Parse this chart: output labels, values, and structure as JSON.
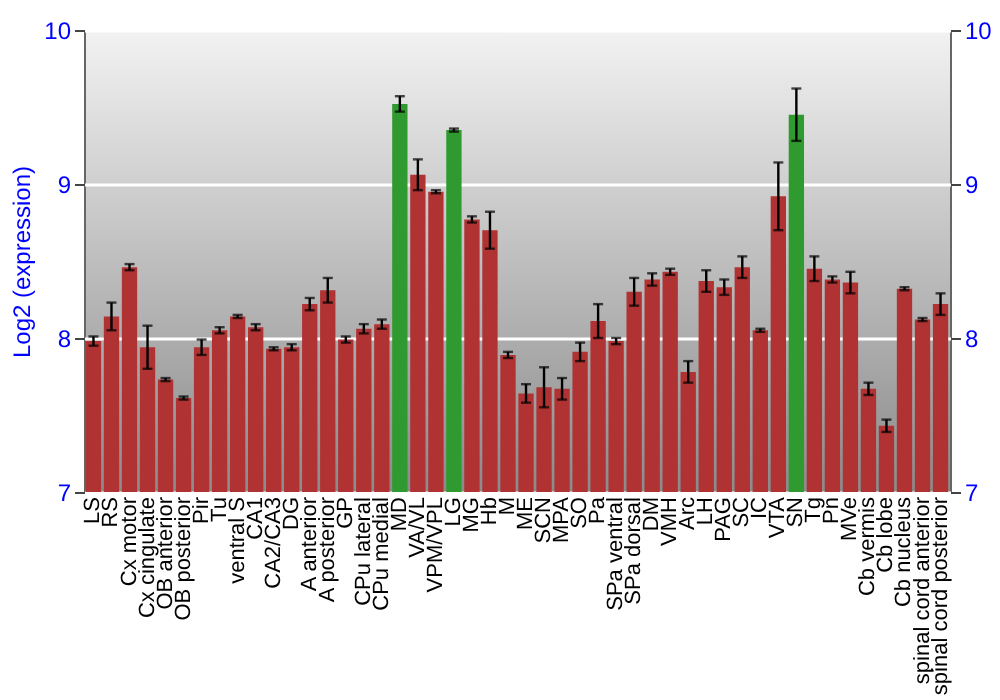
{
  "chart_data": {
    "type": "bar",
    "ylabel": "Log2 (expression)",
    "categories": [
      "LS",
      "RS",
      "Cx motor",
      "Cx cingulate",
      "OB anterior",
      "OB posterior",
      "Pir",
      "Tu",
      "ventral S",
      "CA1",
      "CA2/CA3",
      "DG",
      "A anterior",
      "A posterior",
      "GP",
      "CPu lateral",
      "CPu medial",
      "MD",
      "VA/VL",
      "VPM/VPL",
      "LG",
      "MG",
      "Hb",
      "M",
      "ME",
      "SCN",
      "MPA",
      "SO",
      "Pa",
      "SPa ventral",
      "SPa dorsal",
      "DM",
      "VMH",
      "Arc",
      "LH",
      "PAG",
      "SC",
      "IC",
      "VTA",
      "SN",
      "Tg",
      "Pn",
      "MVe",
      "Cb vermis",
      "Cb lobe",
      "Cb nucleus",
      "spinal cord anterior",
      "spinal cord posterior"
    ],
    "values": [
      7.98,
      8.14,
      8.46,
      7.94,
      7.73,
      7.61,
      7.94,
      8.05,
      8.14,
      8.07,
      7.93,
      7.94,
      8.22,
      8.31,
      7.99,
      8.06,
      8.09,
      9.52,
      9.06,
      8.95,
      9.35,
      8.77,
      8.7,
      7.89,
      7.64,
      7.68,
      7.67,
      7.91,
      8.11,
      7.98,
      8.3,
      8.38,
      8.43,
      7.78,
      8.37,
      8.33,
      8.46,
      8.05,
      8.92,
      9.45,
      8.45,
      8.38,
      8.36,
      7.67,
      7.43,
      8.32,
      8.12,
      8.22
    ],
    "errors": [
      0.03,
      0.09,
      0.02,
      0.14,
      0.01,
      0.01,
      0.05,
      0.02,
      0.01,
      0.02,
      0.01,
      0.02,
      0.04,
      0.08,
      0.02,
      0.03,
      0.03,
      0.05,
      0.1,
      0.01,
      0.01,
      0.02,
      0.12,
      0.02,
      0.06,
      0.13,
      0.07,
      0.06,
      0.11,
      0.02,
      0.09,
      0.04,
      0.02,
      0.07,
      0.07,
      0.05,
      0.07,
      0.01,
      0.22,
      0.17,
      0.08,
      0.02,
      0.07,
      0.04,
      0.04,
      0.01,
      0.01,
      0.07
    ],
    "colors": [
      "#b03232",
      "#b03232",
      "#b03232",
      "#b03232",
      "#b03232",
      "#b03232",
      "#b03232",
      "#b03232",
      "#b03232",
      "#b03232",
      "#b03232",
      "#b03232",
      "#b03232",
      "#b03232",
      "#b03232",
      "#b03232",
      "#b03232",
      "#2f9a2f",
      "#b03232",
      "#b03232",
      "#2f9a2f",
      "#b03232",
      "#b03232",
      "#b03232",
      "#b03232",
      "#b03232",
      "#b03232",
      "#b03232",
      "#b03232",
      "#b03232",
      "#b03232",
      "#b03232",
      "#b03232",
      "#b03232",
      "#b03232",
      "#b03232",
      "#b03232",
      "#b03232",
      "#b03232",
      "#2f9a2f",
      "#b03232",
      "#b03232",
      "#b03232",
      "#b03232",
      "#b03232",
      "#b03232",
      "#b03232",
      "#b03232"
    ],
    "ylim": [
      7,
      10
    ],
    "yticks": [
      7,
      8,
      9,
      10
    ],
    "y2lim": [
      7,
      10
    ],
    "y2ticks": [
      7,
      8,
      9,
      10
    ],
    "grid": "y"
  }
}
